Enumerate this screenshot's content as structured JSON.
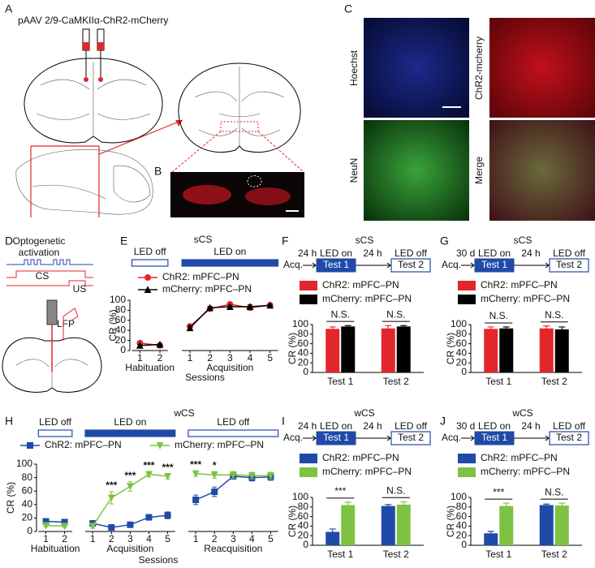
{
  "panel_labels": [
    "A",
    "B",
    "C",
    "D",
    "E",
    "F",
    "G",
    "H",
    "I",
    "J"
  ],
  "panel_a": {
    "construct": "pAAV 2/9-CaMKIIα-ChR2-mCherry"
  },
  "panel_c": {
    "stains": [
      "Hoechst",
      "ChR2-mcherry",
      "NeuN",
      "Merge"
    ]
  },
  "panel_d": {
    "stimulus_lines": [
      "Optogenetic",
      "activation"
    ],
    "cs": "CS",
    "us": "US",
    "recording": "LFP"
  },
  "chart_data": [
    {
      "type": "line",
      "title": "sCS",
      "y_label": "CR (%)",
      "x_label": "Sessions",
      "ylim": [
        0,
        100
      ],
      "yticks": [
        0,
        20,
        40,
        60,
        80,
        100
      ],
      "groups": [
        {
          "label": "Habituation",
          "led": "LED off",
          "led_filled": false,
          "categories": [
            "1",
            "2"
          ]
        },
        {
          "label": "Acquisition",
          "led": "LED on",
          "led_filled": true,
          "categories": [
            "1",
            "2",
            "3",
            "4",
            "5"
          ]
        }
      ],
      "series": [
        {
          "name": "ChR2: mPFC–PN",
          "color": "#e3262b",
          "marker": "circle",
          "values": [
            [
              15,
              10
            ],
            [
              48,
              83,
              92,
              85,
              90
            ]
          ],
          "errors": [
            [
              3,
              2
            ],
            [
              4,
              4,
              2,
              4,
              3
            ]
          ]
        },
        {
          "name": "mCherry: mPFC–PN",
          "color": "#000000",
          "marker": "triangle",
          "values": [
            [
              10,
              12
            ],
            [
              45,
              85,
              87,
              87,
              90
            ]
          ],
          "errors": [
            [
              2,
              2
            ],
            [
              4,
              3,
              3,
              4,
              2
            ]
          ]
        }
      ]
    },
    {
      "type": "bar",
      "title": "sCS",
      "protocol": {
        "start": "Acq.",
        "delay_1": "24 h",
        "condition_1": "LED on",
        "test_1": "Test 1",
        "delay_2": "24 h",
        "condition_2": "LED off",
        "test_2": "Test 2"
      },
      "y_label": "CR (%)",
      "ylim": [
        0,
        100
      ],
      "yticks": [
        0,
        20,
        40,
        60,
        80,
        100
      ],
      "categories": [
        "Test 1",
        "Test 2"
      ],
      "significance": [
        "N.S.",
        "N.S."
      ],
      "series": [
        {
          "name": "ChR2: mPFC–PN",
          "color": "#e3262b",
          "values": [
            91,
            92
          ],
          "errors": [
            4,
            6
          ]
        },
        {
          "name": "mCherry: mPFC–PN",
          "color": "#000000",
          "values": [
            96,
            96
          ],
          "errors": [
            2,
            2
          ]
        }
      ]
    },
    {
      "type": "bar",
      "title": "sCS",
      "protocol": {
        "start": "Acq.",
        "delay_1": "30 d",
        "condition_1": "LED on",
        "test_1": "Test 1",
        "delay_2": "24 h",
        "condition_2": "LED off",
        "test_2": "Test 2"
      },
      "y_label": "CR (%)",
      "ylim": [
        0,
        100
      ],
      "yticks": [
        0,
        20,
        40,
        60,
        80,
        100
      ],
      "categories": [
        "Test 1",
        "Test 2"
      ],
      "significance": [
        "N.S.",
        "N.S."
      ],
      "series": [
        {
          "name": "ChR2: mPFC–PN",
          "color": "#e3262b",
          "values": [
            91,
            92
          ],
          "errors": [
            4,
            5
          ]
        },
        {
          "name": "mCherry: mPFC–PN",
          "color": "#000000",
          "values": [
            92,
            90
          ],
          "errors": [
            3,
            5
          ]
        }
      ]
    },
    {
      "type": "line",
      "title": "wCS",
      "y_label": "CR (%)",
      "x_label": "Sessions",
      "ylim": [
        0,
        100
      ],
      "yticks": [
        0,
        20,
        40,
        60,
        80,
        100
      ],
      "groups": [
        {
          "label": "Habituation",
          "led": "LED off",
          "led_filled": false,
          "categories": [
            "1",
            "2"
          ],
          "significance": [
            null,
            null
          ]
        },
        {
          "label": "Acquisition",
          "led": "LED on",
          "led_filled": true,
          "categories": [
            "1",
            "2",
            "3",
            "4",
            "5"
          ],
          "significance": [
            null,
            "***",
            "***",
            "***",
            "***"
          ]
        },
        {
          "label": "Reacquisition",
          "led": "LED off",
          "led_filled": false,
          "categories": [
            "1",
            "2",
            "3",
            "4",
            "5"
          ],
          "significance": [
            "***",
            "*",
            null,
            null,
            null
          ]
        }
      ],
      "series": [
        {
          "name": "ChR2: mPFC–PN",
          "color": "#1f4aa8",
          "marker": "square",
          "values": [
            [
              15,
              14
            ],
            [
              12,
              6,
              10,
              21,
              24
            ],
            [
              47,
              59,
              82,
              80,
              81
            ]
          ],
          "errors": [
            [
              2,
              2
            ],
            [
              4,
              2,
              4,
              4,
              5
            ],
            [
              7,
              7,
              4,
              5,
              5
            ]
          ]
        },
        {
          "name": "mCherry: mPFC–PN",
          "color": "#7dc242",
          "marker": "triangle-down",
          "values": [
            [
              9,
              8
            ],
            [
              8,
              50,
              67,
              85,
              82
            ],
            [
              86,
              84,
              84,
              83,
              83
            ]
          ],
          "errors": [
            [
              2,
              2
            ],
            [
              3,
              9,
              7,
              4,
              4
            ],
            [
              4,
              5,
              5,
              5,
              5
            ]
          ]
        }
      ]
    },
    {
      "type": "bar",
      "title": "wCS",
      "protocol": {
        "start": "Acq.",
        "delay_1": "24 h",
        "condition_1": "LED on",
        "test_1": "Test 1",
        "delay_2": "24 h",
        "condition_2": "LED off",
        "test_2": "Test 2"
      },
      "y_label": "CR (%)",
      "ylim": [
        0,
        100
      ],
      "yticks": [
        0,
        20,
        40,
        60,
        80,
        100
      ],
      "categories": [
        "Test 1",
        "Test 2"
      ],
      "significance": [
        "***",
        "N.S."
      ],
      "series": [
        {
          "name": "ChR2: mPFC–PN",
          "color": "#1f4aa8",
          "values": [
            28,
            82
          ],
          "errors": [
            6,
            3
          ]
        },
        {
          "name": "mCherry: mPFC–PN",
          "color": "#7dc242",
          "values": [
            84,
            85
          ],
          "errors": [
            6,
            6
          ]
        }
      ]
    },
    {
      "type": "bar",
      "title": "wCS",
      "protocol": {
        "start": "Acq.",
        "delay_1": "30 d",
        "condition_1": "LED on",
        "test_1": "Test 1",
        "delay_2": "24 h",
        "condition_2": "LED off",
        "test_2": "Test 2"
      },
      "y_label": "CR (%)",
      "ylim": [
        0,
        100
      ],
      "yticks": [
        0,
        20,
        40,
        60,
        80,
        100
      ],
      "categories": [
        "Test 1",
        "Test 2"
      ],
      "significance": [
        "***",
        "N.S."
      ],
      "series": [
        {
          "name": "ChR2: mPFC–PN",
          "color": "#1f4aa8",
          "values": [
            25,
            84
          ],
          "errors": [
            4,
            2
          ]
        },
        {
          "name": "mCherry: mPFC–PN",
          "color": "#7dc242",
          "values": [
            82,
            83
          ],
          "errors": [
            6,
            5
          ]
        }
      ]
    }
  ]
}
